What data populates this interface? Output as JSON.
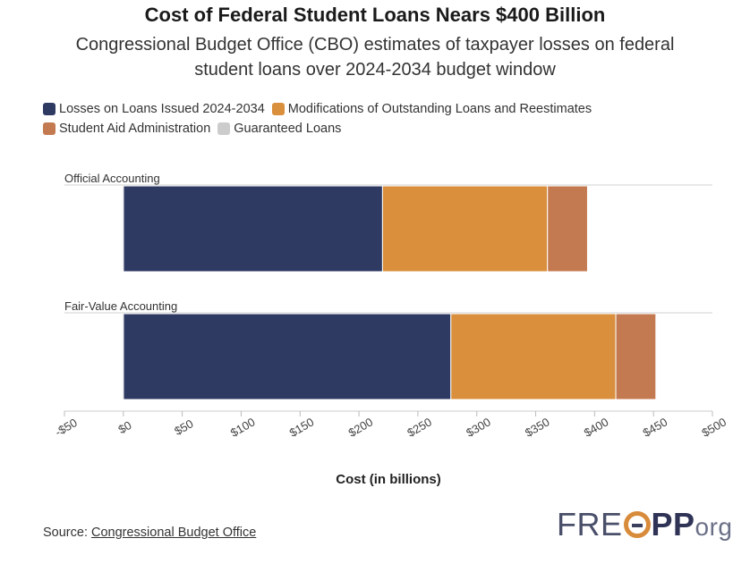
{
  "title": "Cost of Federal Student Loans Nears $400 Billion",
  "subtitle": "Congressional Budget Office (CBO) estimates of taxpayer losses on federal student loans over 2024-2034 budget window",
  "legend": [
    {
      "label": "Losses on Loans Issued 2024-2034",
      "color": "#2f3a63"
    },
    {
      "label": "Modifications of Outstanding Loans and Reestimates",
      "color": "#d98f3c"
    },
    {
      "label": "Student Aid Administration",
      "color": "#c47a50"
    },
    {
      "label": "Guaranteed Loans",
      "color": "#cccccc"
    }
  ],
  "chart_data": {
    "type": "bar",
    "orientation": "horizontal",
    "stacked": true,
    "categories": [
      "Official Accounting",
      "Fair-Value Accounting"
    ],
    "series": [
      {
        "name": "Losses on Loans Issued 2024-2034",
        "values": [
          220,
          278
        ],
        "color": "#2f3a63"
      },
      {
        "name": "Modifications of Outstanding Loans and Reestimates",
        "values": [
          140,
          140
        ],
        "color": "#d98f3c"
      },
      {
        "name": "Student Aid Administration",
        "values": [
          34,
          34
        ],
        "color": "#c47a50"
      },
      {
        "name": "Guaranteed Loans",
        "values": [
          -1,
          -1
        ],
        "color": "#cccccc"
      }
    ],
    "xlabel": "Cost (in billions)",
    "xlim": [
      -50,
      500
    ],
    "ticks": [
      -50,
      0,
      50,
      100,
      150,
      200,
      250,
      300,
      350,
      400,
      450,
      500
    ],
    "tick_labels": [
      "-$50",
      "$0",
      "$50",
      "$100",
      "$150",
      "$200",
      "$250",
      "$300",
      "$350",
      "$400",
      "$450",
      "$500"
    ],
    "grid": false
  },
  "source": {
    "prefix": "Source: ",
    "link_text": "Congressional Budget Office"
  },
  "logo": {
    "part1": "FRE",
    "part2": "PP",
    "part3": "org"
  }
}
